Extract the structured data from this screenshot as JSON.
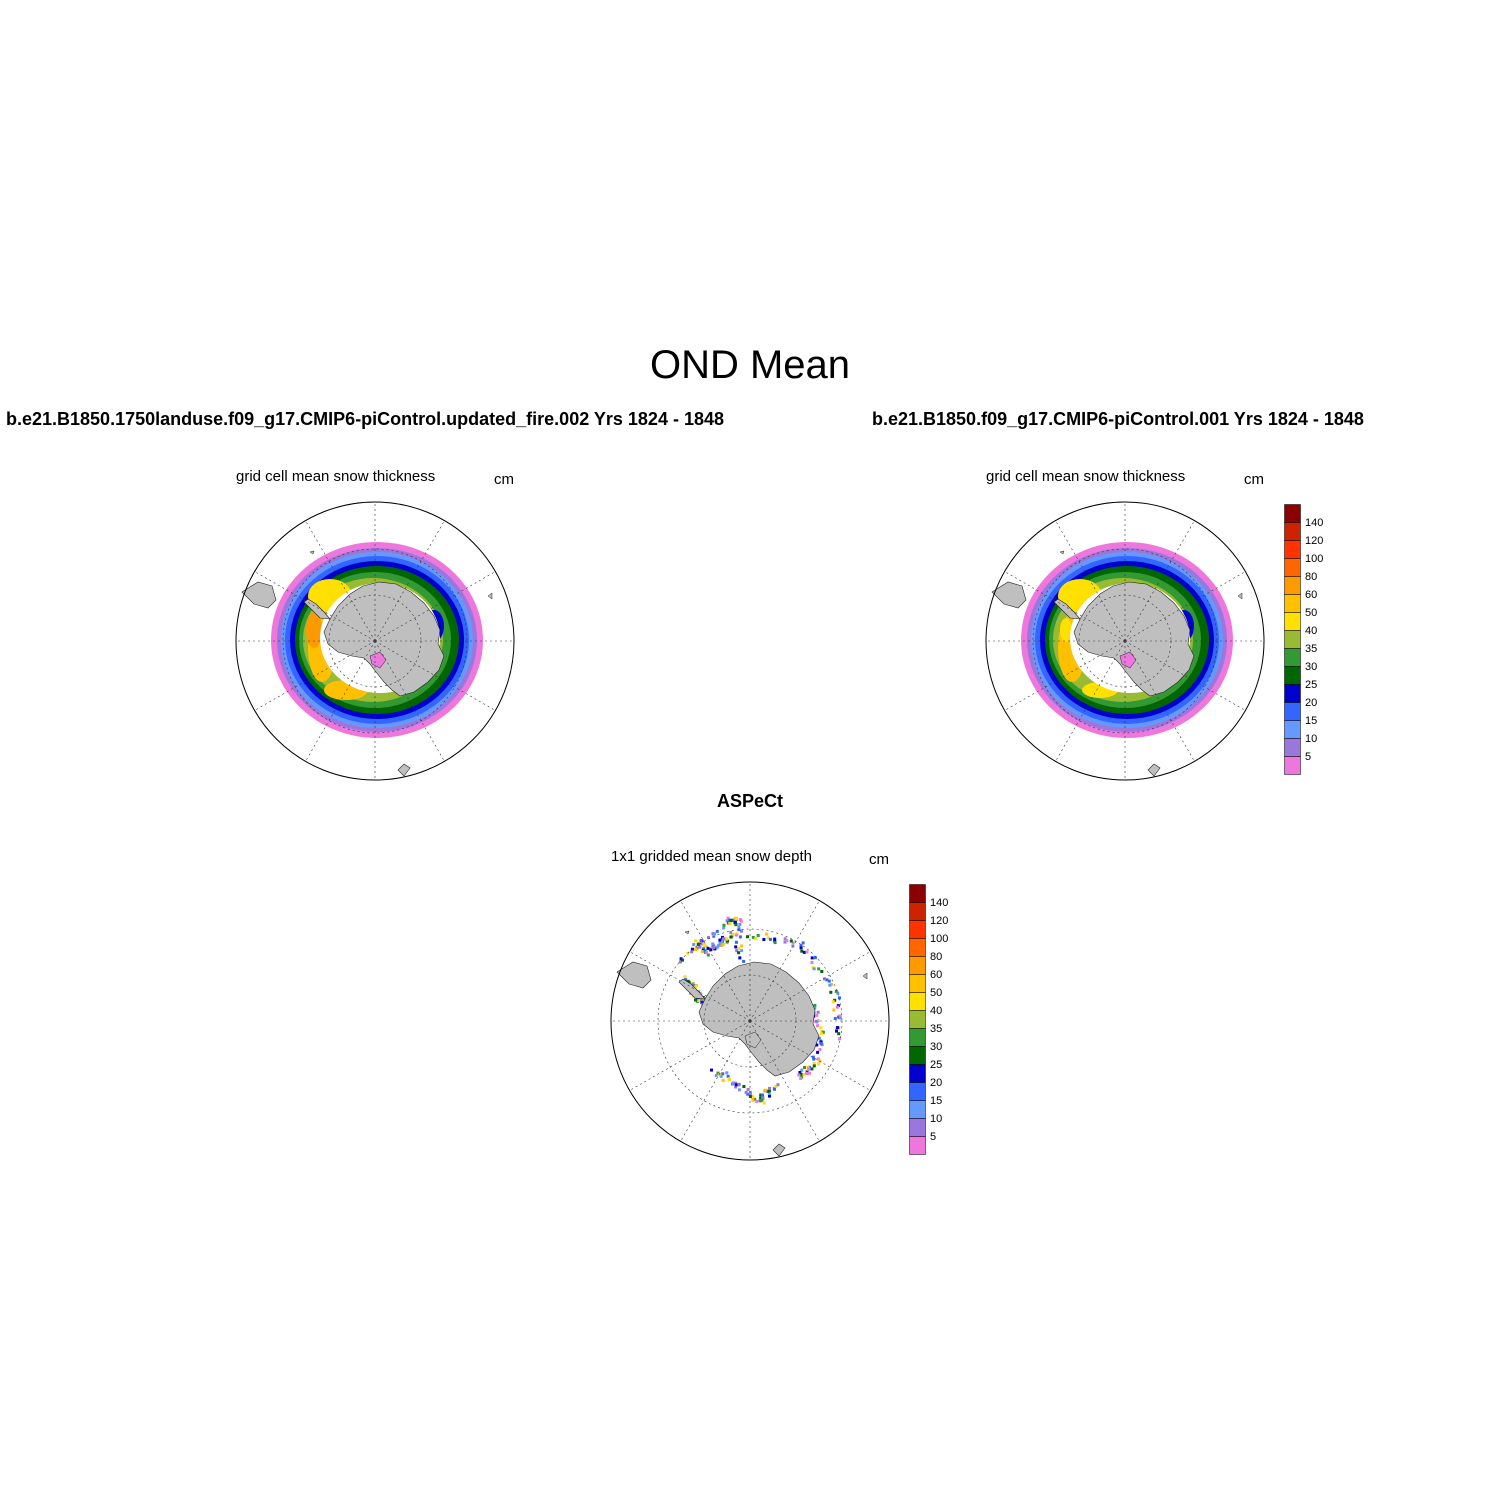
{
  "figure": {
    "title": "OND Mean"
  },
  "panels": [
    {
      "id": "left",
      "case_title": "b.e21.B1850.1750landuse.f09_g17.CMIP6-piControl.updated_fire.002  Yrs 1824 - 1848",
      "subtitle": "grid cell mean snow thickness",
      "units": "cm"
    },
    {
      "id": "right",
      "case_title": "b.e21.B1850.f09_g17.CMIP6-piControl.001  Yrs 1824 - 1848",
      "subtitle": "grid cell mean snow thickness",
      "units": "cm"
    },
    {
      "id": "obs",
      "case_title": "ASPeCt",
      "subtitle": "1x1 gridded mean snow depth",
      "units": "cm"
    }
  ],
  "colorbar": {
    "labels": [
      "140",
      "120",
      "100",
      "80",
      "60",
      "50",
      "40",
      "35",
      "30",
      "25",
      "20",
      "15",
      "10",
      "5"
    ],
    "colors": [
      "#8b0000",
      "#cc2200",
      "#ff3300",
      "#ff6600",
      "#ff9900",
      "#ffc000",
      "#ffe000",
      "#99bb33",
      "#339933",
      "#006600",
      "#0000cc",
      "#3366ff",
      "#6699ff",
      "#9977dd",
      "#ee77dd"
    ]
  },
  "map": {
    "projection": "south polar stereographic",
    "land_color": "#bfbfbf",
    "grid_style": "dotted"
  }
}
